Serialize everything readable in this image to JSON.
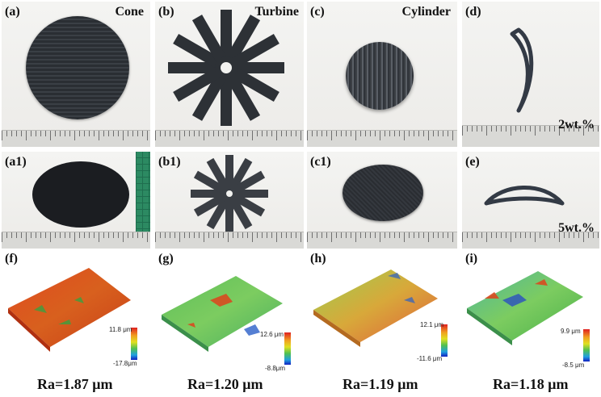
{
  "panels": {
    "a": {
      "label": "(a)",
      "title": "Cone"
    },
    "b": {
      "label": "(b)",
      "title": "Turbine"
    },
    "c": {
      "label": "(c)",
      "title": "Cylinder"
    },
    "d": {
      "label": "(d)",
      "title": "2wt.%"
    },
    "a1": {
      "label": "(a1)"
    },
    "b1": {
      "label": "(b1)"
    },
    "c1": {
      "label": "(c1)"
    },
    "e": {
      "label": "(e)",
      "title": "5wt.%"
    }
  },
  "surfaces": [
    {
      "label": "(f)",
      "max": "11.8 μm",
      "min": "-17.8μm",
      "ra": "Ra=1.87 μm"
    },
    {
      "label": "(g)",
      "max": "12.6 μm",
      "min": "-8.8μm",
      "ra": "Ra=1.20 μm"
    },
    {
      "label": "(h)",
      "max": "12.1 μm",
      "min": "-11.6 μm",
      "ra": "Ra=1.19 μm"
    },
    {
      "label": "(i)",
      "max": "9.9 μm",
      "min": "-8.5 μm",
      "ra": "Ra=1.18 μm"
    }
  ]
}
